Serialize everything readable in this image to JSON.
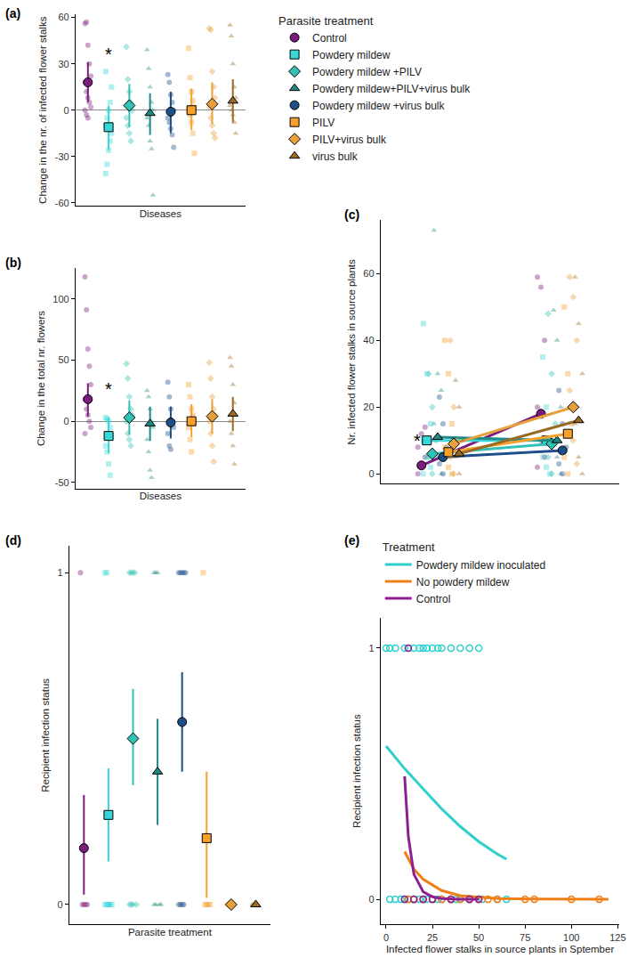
{
  "chart_data": [
    {
      "type": "dot",
      "title": "(a)",
      "x_label": "Diseases",
      "y_label": "Change in the nr. of infected flower stalks",
      "ylim": [
        -62,
        62
      ],
      "yticks": [
        -60,
        -30,
        0,
        30,
        60
      ],
      "tick_labels": "y",
      "legend_title": "Parasite treatment",
      "legend": "top right",
      "annotations": [
        {
          "text": "*",
          "x": 1,
          "y": 36
        }
      ],
      "series": [
        {
          "name": "Control",
          "color": "#7B1C7D",
          "marker": "circle",
          "mean": 18,
          "ci": [
            5,
            31
          ],
          "values": [
            56,
            57,
            42,
            30,
            22,
            18,
            12,
            8,
            5,
            2,
            0,
            -3,
            -5
          ]
        },
        {
          "name": "Powdery mildew",
          "color": "#38D6D6",
          "marker": "square",
          "mean": -11,
          "ci": [
            -26,
            3
          ],
          "values": [
            -41,
            -35,
            -26,
            -20,
            -15,
            -10,
            -5,
            0,
            5,
            15,
            25
          ]
        },
        {
          "name": "Powdery mildew +PILV",
          "color": "#31C2B5",
          "marker": "diamond",
          "mean": 3,
          "ci": [
            -11,
            17
          ],
          "values": [
            41,
            20,
            12,
            5,
            0,
            -5,
            -10,
            -15,
            -20
          ]
        },
        {
          "name": "Powdery mildew+PILV+virus bulk",
          "color": "#1F8A84",
          "marker": "triangle-up",
          "mean": -2,
          "ci": [
            -16,
            11
          ],
          "values": [
            39,
            27,
            15,
            5,
            0,
            -5,
            -10,
            -20,
            -25,
            -55
          ]
        },
        {
          "name": "Powdery mildew +virus bulk",
          "color": "#1C4F8A",
          "marker": "circle",
          "mean": -1,
          "ci": [
            -15,
            12
          ],
          "values": [
            23,
            18,
            10,
            5,
            0,
            -5,
            -8,
            -12,
            -16,
            -24
          ]
        },
        {
          "name": "PILV",
          "color": "#F7A02C",
          "marker": "square",
          "mean": 0,
          "ci": [
            -13,
            14
          ],
          "values": [
            40,
            21,
            12,
            6,
            2,
            0,
            -3,
            -8,
            -15,
            -28
          ]
        },
        {
          "name": "PILV+virus bulk",
          "color": "#E8A03A",
          "marker": "diamond",
          "mean": 4,
          "ci": [
            -9,
            18
          ],
          "values": [
            53,
            52,
            25,
            15,
            8,
            2,
            -5,
            -10,
            -15,
            -18
          ]
        },
        {
          "name": "virus bulk",
          "color": "#9A6A24",
          "marker": "triangle-up",
          "mean": 6,
          "ci": [
            -8,
            20
          ],
          "values": [
            55,
            48,
            30,
            15,
            8,
            3,
            0,
            -3,
            -8,
            -15
          ]
        }
      ]
    },
    {
      "type": "dot",
      "title": "(b)",
      "x_label": "Diseases",
      "y_label": "Change in the total nr. flowers",
      "ylim": [
        -55,
        125
      ],
      "yticks": [
        -50,
        0,
        50,
        100
      ],
      "tick_labels": "y",
      "annotations": [
        {
          "text": "*",
          "x": 1,
          "y": 26
        }
      ],
      "series": [
        {
          "name": "Control",
          "color": "#7B1C7D",
          "marker": "circle",
          "mean": 18,
          "ci": [
            4,
            31
          ],
          "values": [
            118,
            91,
            59,
            45,
            30,
            18,
            10,
            5,
            0,
            -5,
            -10
          ]
        },
        {
          "name": "Powdery mildew",
          "color": "#38D6D6",
          "marker": "square",
          "mean": -12,
          "ci": [
            -26,
            3
          ],
          "values": [
            3,
            2,
            0,
            -5,
            -12,
            -20,
            -25,
            -35,
            -44
          ]
        },
        {
          "name": "Powdery mildew +PILV",
          "color": "#31C2B5",
          "marker": "diamond",
          "mean": 3,
          "ci": [
            -11,
            17
          ],
          "values": [
            47,
            35,
            20,
            10,
            5,
            0,
            -10,
            -15,
            -20
          ]
        },
        {
          "name": "Powdery mildew+PILV+virus bulk",
          "color": "#1F8A84",
          "marker": "triangle-up",
          "mean": -2,
          "ci": [
            -16,
            12
          ],
          "values": [
            25,
            20,
            10,
            0,
            -5,
            -15,
            -25,
            -40,
            -46
          ]
        },
        {
          "name": "Powdery mildew +virus bulk",
          "color": "#1C4F8A",
          "marker": "circle",
          "mean": -1,
          "ci": [
            -14,
            12
          ],
          "values": [
            32,
            20,
            10,
            0,
            -5,
            -10,
            -20,
            -23
          ]
        },
        {
          "name": "PILV",
          "color": "#F7A02C",
          "marker": "square",
          "mean": 0,
          "ci": [
            -13,
            14
          ],
          "values": [
            30,
            20,
            10,
            5,
            0,
            -5,
            -15,
            -25
          ]
        },
        {
          "name": "PILV+virus bulk",
          "color": "#E8A03A",
          "marker": "diamond",
          "mean": 4,
          "ci": [
            -10,
            18
          ],
          "values": [
            48,
            35,
            20,
            10,
            5,
            0,
            -10,
            -20,
            -33
          ]
        },
        {
          "name": "virus bulk",
          "color": "#9A6A24",
          "marker": "triangle-up",
          "mean": 6,
          "ci": [
            -8,
            20
          ],
          "values": [
            52,
            45,
            30,
            15,
            5,
            0,
            -10,
            -20,
            -35
          ]
        }
      ]
    },
    {
      "type": "line",
      "title": "(c)",
      "y_label": "Nr. infected flower stalks in source plants",
      "categories": [
        null,
        null
      ],
      "ylim": [
        -3,
        76
      ],
      "yticks": [
        0,
        20,
        40,
        60
      ],
      "tick_labels": "y",
      "annotations": [
        {
          "text": "*",
          "x": 0,
          "y": 10
        }
      ],
      "series": [
        {
          "name": "Control",
          "color": "#7B1C7D",
          "marker": "circle",
          "mean": [
            2.5,
            18
          ],
          "values": [
            [
              0,
              2,
              5,
              8,
              12,
              14
            ],
            [
              59,
              56,
              40,
              20,
              10,
              5,
              2
            ]
          ]
        },
        {
          "name": "Powdery mildew",
          "color": "#38D6D6",
          "marker": "square",
          "mean": [
            10,
            10
          ],
          "values": [
            [
              45,
              30,
              15,
              10,
              5,
              2,
              0
            ],
            [
              35,
              20,
              10,
              5,
              2,
              0
            ]
          ]
        },
        {
          "name": "Powdery mildew +PILV",
          "color": "#31C2B5",
          "marker": "diamond",
          "mean": [
            6,
            9
          ],
          "values": [
            [
              30,
              20,
              10,
              5,
              0
            ],
            [
              48,
              30,
              15,
              5,
              0
            ]
          ]
        },
        {
          "name": "Powdery mildew+PILV+virus bulk",
          "color": "#1F8A84",
          "marker": "triangle-up",
          "mean": [
            11,
            10
          ],
          "values": [
            [
              73,
              30,
              25,
              15,
              5,
              0
            ],
            [
              49,
              40,
              20,
              10,
              5,
              0
            ]
          ]
        },
        {
          "name": "Powdery mildew +virus bulk",
          "color": "#1C4F8A",
          "marker": "circle",
          "mean": [
            5,
            7
          ],
          "values": [
            [
              23,
              15,
              8,
              3,
              0
            ],
            [
              25,
              15,
              8,
              3,
              0
            ]
          ]
        },
        {
          "name": "PILV",
          "color": "#F7A02C",
          "marker": "square",
          "mean": [
            6.5,
            12
          ],
          "values": [
            [
              40,
              30,
              15,
              8,
              2,
              0
            ],
            [
              50,
              30,
              15,
              5,
              0
            ]
          ]
        },
        {
          "name": "PILV+virus bulk",
          "color": "#E8A03A",
          "marker": "diamond",
          "mean": [
            9,
            20
          ],
          "values": [
            [
              40,
              20,
              10,
              5,
              0
            ],
            [
              59,
              53,
              40,
              25,
              10,
              3
            ]
          ]
        },
        {
          "name": "virus bulk",
          "color": "#9A6A24",
          "marker": "triangle-up",
          "mean": [
            6,
            16
          ],
          "values": [
            [
              28,
              20,
              10,
              5,
              0
            ],
            [
              59,
              45,
              30,
              15,
              5,
              0
            ]
          ]
        }
      ]
    },
    {
      "type": "dot",
      "title": "(d)",
      "x_label": "Parasite treatment",
      "y_label": "Recipient infection status",
      "ylim": [
        -0.06,
        1.08
      ],
      "yticks": [
        0,
        1
      ],
      "tick_labels": "y",
      "series": [
        {
          "name": "Control",
          "color": "#7B1C7D",
          "marker": "circle",
          "mean": 0.17,
          "ci": [
            0.03,
            0.33
          ],
          "values": [
            1,
            0,
            0,
            0,
            0
          ]
        },
        {
          "name": "Powdery mildew",
          "color": "#38D6D6",
          "marker": "square",
          "mean": 0.27,
          "ci": [
            0.13,
            0.41
          ],
          "values": [
            1,
            1,
            0,
            0,
            0,
            0,
            0,
            0
          ]
        },
        {
          "name": "Powdery mildew +PILV",
          "color": "#31C2B5",
          "marker": "diamond",
          "mean": 0.5,
          "ci": [
            0.36,
            0.65
          ],
          "values": [
            1,
            1,
            1,
            1,
            0,
            0,
            0,
            0
          ]
        },
        {
          "name": "Powdery mildew+PILV+virus bulk",
          "color": "#1F8A84",
          "marker": "triangle-up",
          "mean": 0.4,
          "ci": [
            0.24,
            0.56
          ],
          "values": [
            1,
            1,
            1,
            0,
            0,
            0,
            0
          ]
        },
        {
          "name": "Powdery mildew +virus bulk",
          "color": "#1C4F8A",
          "marker": "circle",
          "mean": 0.55,
          "ci": [
            0.4,
            0.7
          ],
          "values": [
            1,
            1,
            1,
            1,
            1,
            0,
            0,
            0,
            0
          ]
        },
        {
          "name": "PILV",
          "color": "#F7A02C",
          "marker": "square",
          "mean": 0.2,
          "ci": [
            0.02,
            0.4
          ],
          "values": [
            1,
            0,
            0,
            0,
            0
          ]
        },
        {
          "name": "PILV+virus bulk",
          "color": "#E8A03A",
          "marker": "diamond",
          "mean": 0,
          "ci": [
            0,
            0
          ],
          "values": [
            0,
            0,
            0,
            0
          ]
        },
        {
          "name": "virus bulk",
          "color": "#9A6A24",
          "marker": "triangle-up",
          "mean": 0,
          "ci": [
            0,
            0
          ],
          "values": [
            0,
            0,
            0,
            0
          ]
        }
      ]
    },
    {
      "type": "scatter",
      "title": "(e)",
      "x_label": "Infected flower stalks in source plants in Sptember",
      "y_label": "Recipient infection status",
      "xlim": [
        -3,
        126
      ],
      "xticks": [
        0,
        25,
        50,
        75,
        100,
        125
      ],
      "ylim": [
        -0.1,
        1.12
      ],
      "yticks": [
        0,
        1
      ],
      "legend_title": "Treatment",
      "series": [
        {
          "name": "Powdery mildew inoculated",
          "color": "#2FCFCB",
          "x": [
            0,
            10,
            20,
            30,
            40,
            50,
            60,
            65
          ],
          "values": [
            0.61,
            0.52,
            0.44,
            0.36,
            0.29,
            0.23,
            0.18,
            0.16
          ],
          "points_x": [
            0,
            2,
            5,
            10,
            12,
            15,
            18,
            20,
            22,
            25,
            28,
            30,
            35,
            40,
            45,
            50,
            2,
            5,
            8,
            10,
            12,
            15,
            18,
            20,
            22,
            25,
            28,
            30,
            35,
            38,
            40,
            45,
            52,
            60,
            65
          ],
          "points_y": [
            1,
            1,
            1,
            1,
            1,
            1,
            1,
            1,
            1,
            1,
            1,
            1,
            1,
            1,
            1,
            1,
            0,
            0,
            0,
            0,
            0,
            0,
            0,
            0,
            0,
            0,
            0,
            0,
            0,
            0,
            0,
            0,
            0,
            0,
            0
          ]
        },
        {
          "name": "No powdery mildew",
          "color": "#F07F17",
          "x": [
            10,
            15,
            20,
            30,
            40,
            60,
            80,
            100,
            120
          ],
          "values": [
            0.19,
            0.12,
            0.08,
            0.035,
            0.015,
            0.003,
            0.001,
            0,
            0
          ],
          "points_x": [
            12,
            15,
            20,
            25,
            30,
            35,
            40,
            45,
            50,
            55,
            60,
            75,
            80,
            100,
            115
          ],
          "points_y": [
            0,
            0,
            0,
            0,
            0,
            0,
            0,
            0,
            0,
            0,
            0,
            0,
            0,
            0,
            0
          ]
        },
        {
          "name": "Control",
          "color": "#8E1F91",
          "x": [
            10,
            12,
            15,
            20,
            25,
            30,
            40,
            50
          ],
          "values": [
            0.49,
            0.25,
            0.1,
            0.03,
            0.01,
            0.003,
            0,
            0
          ],
          "points_x": [
            12,
            10,
            15,
            20,
            25,
            35,
            45,
            50
          ],
          "points_y": [
            1,
            0,
            0,
            0,
            0,
            0,
            0,
            0
          ]
        }
      ]
    }
  ]
}
